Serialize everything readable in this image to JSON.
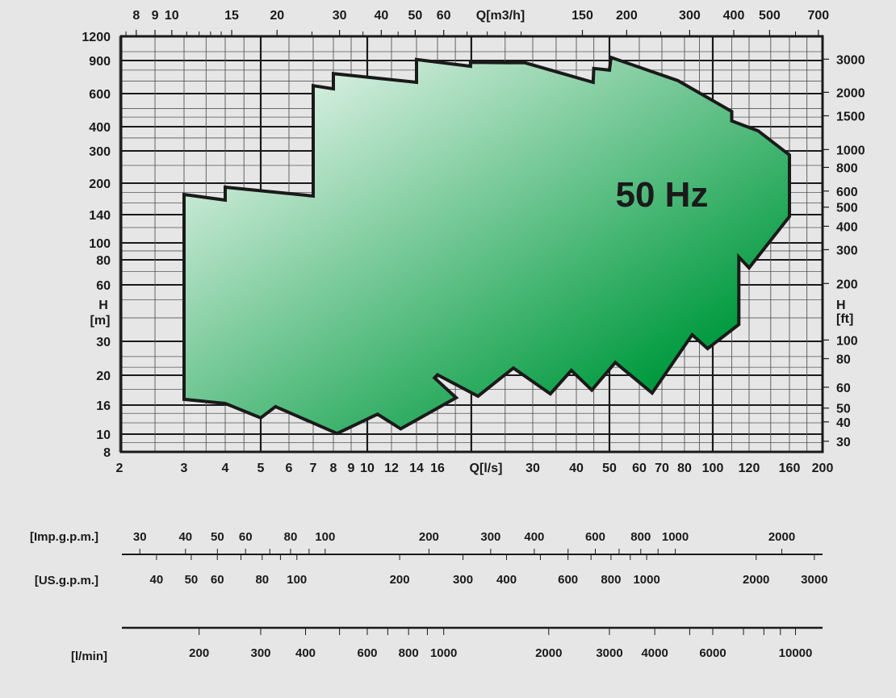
{
  "chart_data": {
    "type": "area",
    "title": "",
    "annotation": "50 Hz",
    "xlabel": "Q[l/s]",
    "ylabel_left": [
      "H",
      "[m]"
    ],
    "ylabel_right": [
      "H",
      "[ft]"
    ],
    "x_scale": "log",
    "y_scale": "log",
    "xlim": [
      2,
      200
    ],
    "ylim": [
      8,
      1200
    ],
    "grid": true,
    "colors": {
      "fill_start": "#ffffff",
      "fill_end": "#009a3e",
      "outline": "#1a1a1a",
      "background": "#e6e6e6",
      "grid": "#1a1a1a"
    },
    "x_ticks": [
      2,
      3,
      4,
      5,
      6,
      7,
      8,
      9,
      10,
      12,
      14,
      16,
      30,
      40,
      50,
      60,
      70,
      80,
      100,
      120,
      160,
      200
    ],
    "y_ticks": [
      8,
      10,
      16,
      20,
      30,
      60,
      80,
      100,
      140,
      200,
      300,
      400,
      600,
      900,
      1200
    ],
    "top_axis": {
      "label": "Q[m3/h]",
      "ticks": [
        8,
        9,
        10,
        15,
        20,
        30,
        40,
        50,
        60,
        150,
        200,
        300,
        400,
        500,
        700
      ]
    },
    "right_axis": {
      "ticks": [
        30,
        40,
        50,
        60,
        80,
        100,
        200,
        300,
        400,
        500,
        600,
        800,
        1000,
        1500,
        2000,
        3000
      ]
    },
    "envelope": [
      [
        3.0,
        16.7
      ],
      [
        3.0,
        176
      ],
      [
        4.0,
        165
      ],
      [
        4.0,
        191
      ],
      [
        7.0,
        173
      ],
      [
        7.0,
        661
      ],
      [
        8.0,
        636
      ],
      [
        8.0,
        767
      ],
      [
        14,
        689
      ],
      [
        14,
        910
      ],
      [
        19.9,
        839
      ],
      [
        19.9,
        880
      ],
      [
        28.5,
        875
      ],
      [
        44.8,
        689
      ],
      [
        45,
        817
      ],
      [
        50,
        800
      ],
      [
        50.5,
        933
      ],
      [
        77,
        703
      ],
      [
        110,
        482
      ],
      [
        110,
        429
      ],
      [
        128,
        381
      ],
      [
        160,
        285
      ],
      [
        160,
        137
      ],
      [
        120,
        73
      ],
      [
        114,
        83
      ],
      [
        114,
        36.9
      ],
      [
        96,
        27.5
      ],
      [
        85,
        32.5
      ],
      [
        65.5,
        17.5
      ],
      [
        51.8,
        23.3
      ],
      [
        44.4,
        17.9
      ],
      [
        38.7,
        21.2
      ],
      [
        33.7,
        17.4
      ],
      [
        26.4,
        21.8
      ],
      [
        20.9,
        17.1
      ],
      [
        16,
        20.1
      ],
      [
        15.7,
        19.6
      ],
      [
        18.1,
        16.9
      ],
      [
        12.7,
        10.9
      ],
      [
        10.8,
        13.8
      ],
      [
        8.2,
        10.1
      ],
      [
        5.5,
        15.6
      ],
      [
        5.0,
        13.0
      ],
      [
        4.0,
        16.2
      ]
    ]
  },
  "scales": {
    "imp_gpm": {
      "label": "[Imp.g.p.m.]",
      "ticks": [
        30,
        40,
        50,
        60,
        80,
        100,
        200,
        300,
        400,
        600,
        800,
        1000,
        2000
      ]
    },
    "us_gpm": {
      "label": "[US.g.p.m.]",
      "ticks": [
        40,
        50,
        60,
        80,
        100,
        200,
        300,
        400,
        600,
        800,
        1000,
        2000,
        3000
      ]
    },
    "l_min": {
      "label": "[l/min]",
      "ticks": [
        200,
        300,
        400,
        600,
        800,
        1000,
        2000,
        3000,
        4000,
        6000,
        10000
      ]
    }
  }
}
